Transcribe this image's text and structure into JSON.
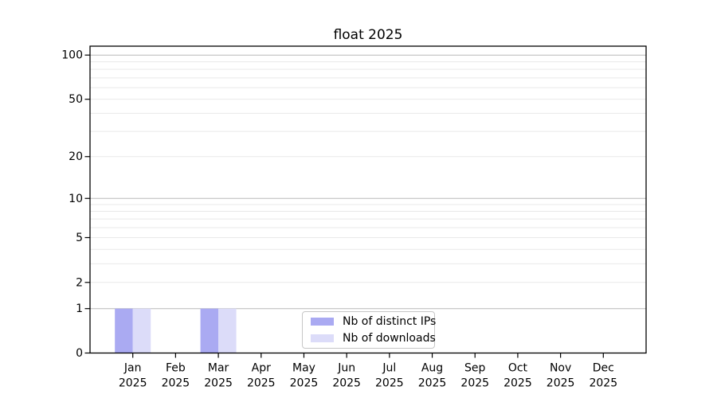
{
  "chart_data": {
    "type": "bar",
    "title": "float 2025",
    "scale": "log1p",
    "categories": [
      "Jan",
      "Feb",
      "Mar",
      "Apr",
      "May",
      "Jun",
      "Jul",
      "Aug",
      "Sep",
      "Oct",
      "Nov",
      "Dec"
    ],
    "category_year": "2025",
    "series": [
      {
        "name": "Nb of distinct IPs",
        "color": "#aaaaf2",
        "values": [
          1,
          0,
          1,
          0,
          0,
          0,
          0,
          0,
          0,
          0,
          0,
          0
        ]
      },
      {
        "name": "Nb of downloads",
        "color": "#dcdcf9",
        "values": [
          1,
          0,
          1,
          0,
          0,
          0,
          0,
          0,
          0,
          0,
          0,
          0
        ]
      }
    ],
    "xlabel": "",
    "ylabel": "",
    "ylim": [
      0,
      115
    ],
    "yticks": [
      0,
      1,
      2,
      5,
      10,
      20,
      50,
      100
    ],
    "major_gridlines": [
      1,
      10,
      100
    ],
    "minor_gridlines": [
      2,
      3,
      4,
      5,
      6,
      7,
      8,
      9,
      20,
      30,
      40,
      50,
      60,
      70,
      80,
      90
    ],
    "grid": true,
    "legend_position": "bottom-center"
  },
  "legend": {
    "entries": [
      {
        "label": "Nb of distinct IPs",
        "color": "#aaaaf2"
      },
      {
        "label": "Nb of downloads",
        "color": "#dcdcf9"
      }
    ]
  },
  "colors": {
    "axis": "#000000",
    "text": "#000000",
    "grid_major": "#b9b9b9",
    "grid_minor": "#e9e9e9",
    "legend_border": "#c6c6c6",
    "background": "#ffffff"
  }
}
